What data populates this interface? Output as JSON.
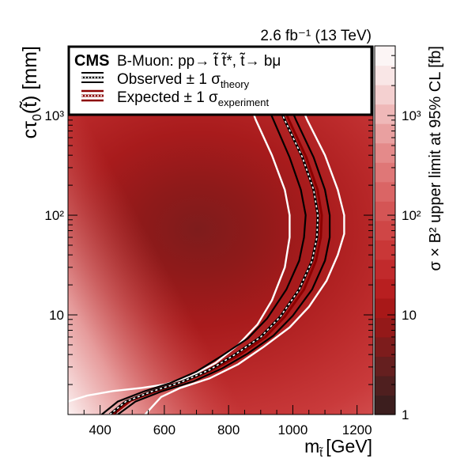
{
  "chart_data": {
    "type": "heatmap",
    "title": "",
    "experiment": "CMS",
    "lumi_label": "2.6 fb⁻¹ (13 TeV)",
    "legend_header": "B-Muon: pp→ t̃ t̃*, t̃→ bμ",
    "legend_placement": "top",
    "legend": [
      {
        "label": "Observed ± 1 σ",
        "subscript": "theory",
        "color": "#000000"
      },
      {
        "label": "Expected ± 1 σ",
        "subscript": "experiment",
        "color": "#8b0000"
      }
    ],
    "xlabel_main": "m",
    "xlabel_sub": "t̃",
    "xlabel_unit": "[GeV]",
    "ylabel_main": "cτ",
    "ylabel_sub": "0",
    "ylabel_rest": "(t̃) [mm]",
    "zlabel": "σ × B² upper limit at 95% CL [fb]",
    "xlim": [
      300,
      1250
    ],
    "ylim": [
      1,
      5000
    ],
    "yscale": "log",
    "zscale": "log",
    "zlim": [
      1,
      5000
    ],
    "x_ticks": [
      400,
      600,
      800,
      1000,
      1200
    ],
    "x_tick_labels": [
      "400",
      "600",
      "800",
      "1000",
      "1200"
    ],
    "y_ticks": [
      10,
      100,
      1000
    ],
    "y_tick_labels": [
      "10",
      "10²",
      "10³"
    ],
    "z_ticks": [
      1,
      10,
      100,
      1000
    ],
    "z_tick_labels": [
      "1",
      "10",
      "10²",
      "10³"
    ],
    "colorbar_colors": [
      "#3c1e1e",
      "#4f1f1f",
      "#651f1f",
      "#7d1c1c",
      "#941919",
      "#a81818",
      "#b81f20",
      "#c12a2c",
      "#c93737",
      "#cf4646",
      "#d45555",
      "#da6565",
      "#df7777",
      "#e48a8a",
      "#e9a0a0",
      "#efb8b8",
      "#f4d0d0",
      "#f9e6e6",
      "#fcf5f5"
    ],
    "heatmap_min_region": {
      "center_mass": 680,
      "center_ctau": 60
    },
    "observed": [
      [
        430,
        1
      ],
      [
        480,
        1.35
      ],
      [
        560,
        1.7
      ],
      [
        650,
        2.1
      ],
      [
        740,
        2.8
      ],
      [
        820,
        4.0
      ],
      [
        900,
        6.0
      ],
      [
        960,
        9.5
      ],
      [
        1020,
        18
      ],
      [
        1060,
        35
      ],
      [
        1075,
        60
      ],
      [
        1078,
        100
      ],
      [
        1065,
        180
      ],
      [
        1030,
        380
      ],
      [
        975,
        900
      ],
      [
        935,
        1800
      ],
      [
        915,
        3000
      ],
      [
        905,
        5000
      ]
    ],
    "observed_band": [
      {
        "name": "Observed +1σ theory",
        "points": [
          [
            455,
            1
          ],
          [
            510,
            1.35
          ],
          [
            590,
            1.7
          ],
          [
            690,
            2.15
          ],
          [
            780,
            2.9
          ],
          [
            860,
            4.1
          ],
          [
            940,
            6.2
          ],
          [
            1000,
            9.8
          ],
          [
            1060,
            18
          ],
          [
            1100,
            35
          ],
          [
            1115,
            60
          ],
          [
            1115,
            100
          ],
          [
            1100,
            180
          ],
          [
            1065,
            380
          ],
          [
            1010,
            900
          ],
          [
            970,
            1800
          ],
          [
            950,
            3000
          ],
          [
            940,
            5000
          ]
        ]
      },
      {
        "name": "Observed -1σ theory",
        "points": [
          [
            405,
            1
          ],
          [
            455,
            1.35
          ],
          [
            535,
            1.7
          ],
          [
            615,
            2.05
          ],
          [
            700,
            2.7
          ],
          [
            780,
            3.9
          ],
          [
            860,
            5.8
          ],
          [
            920,
            9.2
          ],
          [
            980,
            18
          ],
          [
            1020,
            35
          ],
          [
            1035,
            60
          ],
          [
            1040,
            100
          ],
          [
            1025,
            180
          ],
          [
            990,
            380
          ],
          [
            940,
            900
          ],
          [
            900,
            1800
          ],
          [
            880,
            3000
          ],
          [
            870,
            5000
          ]
        ]
      }
    ],
    "expected": [
      [
        440,
        1
      ],
      [
        495,
        1.38
      ],
      [
        575,
        1.72
      ],
      [
        665,
        2.15
      ],
      [
        755,
        2.85
      ],
      [
        835,
        4.0
      ],
      [
        915,
        6.0
      ],
      [
        975,
        9.6
      ],
      [
        1035,
        18
      ],
      [
        1072,
        35
      ],
      [
        1087,
        60
      ],
      [
        1090,
        100
      ],
      [
        1077,
        180
      ],
      [
        1042,
        380
      ],
      [
        988,
        900
      ],
      [
        948,
        1800
      ],
      [
        928,
        3000
      ],
      [
        918,
        5000
      ]
    ],
    "expected_band": [
      {
        "name": "Expected +1σ experiment",
        "points": [
          [
            540,
            1
          ],
          [
            590,
            1.5
          ],
          [
            650,
            1.85
          ],
          [
            740,
            2.3
          ],
          [
            830,
            3.2
          ],
          [
            910,
            4.8
          ],
          [
            990,
            7.5
          ],
          [
            1050,
            12
          ],
          [
            1105,
            22
          ],
          [
            1140,
            40
          ],
          [
            1160,
            65
          ],
          [
            1160,
            100
          ],
          [
            1140,
            180
          ],
          [
            1100,
            400
          ],
          [
            1045,
            900
          ],
          [
            1005,
            1800
          ],
          [
            985,
            3000
          ],
          [
            975,
            5000
          ]
        ]
      },
      {
        "name": "Expected -1σ experiment",
        "points": [
          [
            300,
            1.35
          ],
          [
            360,
            1.55
          ],
          [
            440,
            1.72
          ],
          [
            530,
            1.85
          ],
          [
            600,
            2.0
          ],
          [
            680,
            2.4
          ],
          [
            760,
            3.3
          ],
          [
            830,
            5.0
          ],
          [
            890,
            8.0
          ],
          [
            935,
            14
          ],
          [
            975,
            30
          ],
          [
            990,
            60
          ],
          [
            990,
            100
          ],
          [
            975,
            180
          ],
          [
            935,
            400
          ],
          [
            885,
            900
          ],
          [
            850,
            1800
          ],
          [
            830,
            3000
          ],
          [
            820,
            5000
          ]
        ]
      }
    ]
  }
}
